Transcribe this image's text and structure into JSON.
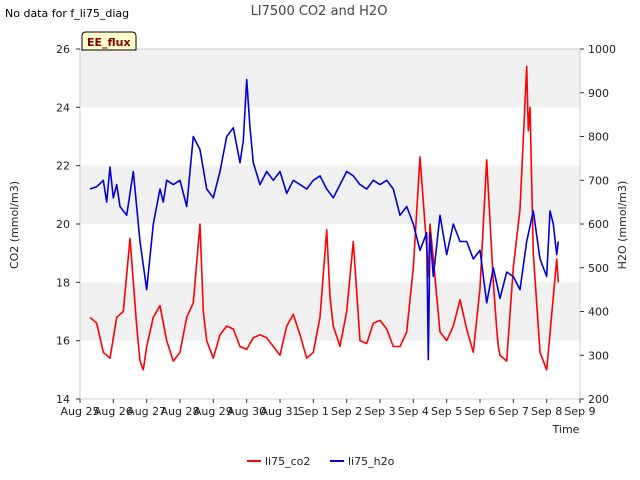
{
  "note": "No data for f_li75_diag",
  "badge": "EE_flux",
  "colors": {
    "co2": "#ff0000",
    "h2o": "#0000dd",
    "band": "#f0f0f0",
    "badge_bg": "#ffffcc"
  },
  "chart_data": {
    "type": "line",
    "title": "LI7500 CO2 and H2O",
    "xlabel": "Time",
    "ylabel": "CO2 (mmol/m3)",
    "y2label": "H2O (mmol/m3)",
    "x_ticks": [
      "Aug 25",
      "Aug 26",
      "Aug 27",
      "Aug 28",
      "Aug 29",
      "Aug 30",
      "Aug 31",
      "Sep 1",
      "Sep 2",
      "Sep 3",
      "Sep 4",
      "Sep 5",
      "Sep 6",
      "Sep 7",
      "Sep 8",
      "Sep 9"
    ],
    "xlim": [
      0,
      15
    ],
    "ylim": [
      14,
      26
    ],
    "y_ticks": [
      "14",
      "16",
      "18",
      "20",
      "22",
      "24",
      "26"
    ],
    "y2lim": [
      200,
      1000
    ],
    "y2_ticks": [
      "200",
      "300",
      "400",
      "500",
      "600",
      "700",
      "800",
      "900",
      "1000"
    ],
    "legend": [
      "li75_co2",
      "li75_h2o"
    ],
    "series": [
      {
        "name": "li75_co2",
        "axis": "left",
        "x": [
          0.3,
          0.5,
          0.7,
          0.9,
          1.1,
          1.3,
          1.5,
          1.7,
          1.8,
          1.9,
          2.0,
          2.2,
          2.4,
          2.6,
          2.8,
          3.0,
          3.2,
          3.4,
          3.6,
          3.7,
          3.8,
          4.0,
          4.2,
          4.4,
          4.6,
          4.8,
          5.0,
          5.2,
          5.4,
          5.6,
          5.8,
          6.0,
          6.2,
          6.4,
          6.6,
          6.8,
          7.0,
          7.2,
          7.4,
          7.5,
          7.6,
          7.8,
          8.0,
          8.2,
          8.4,
          8.6,
          8.8,
          9.0,
          9.2,
          9.4,
          9.6,
          9.8,
          10.0,
          10.2,
          10.4,
          10.45,
          10.5,
          10.6,
          10.8,
          11.0,
          11.2,
          11.4,
          11.6,
          11.8,
          12.0,
          12.2,
          12.4,
          12.5,
          12.55,
          12.6,
          12.8,
          13.0,
          13.2,
          13.4,
          13.45,
          13.5,
          13.6,
          13.8,
          14.0,
          14.2,
          14.3,
          14.35
        ],
        "values": [
          16.8,
          16.6,
          15.6,
          15.4,
          16.8,
          17.0,
          19.5,
          16.5,
          15.3,
          15.0,
          15.8,
          16.8,
          17.2,
          16.0,
          15.3,
          15.6,
          16.8,
          17.3,
          20.0,
          17.0,
          16.0,
          15.4,
          16.2,
          16.5,
          16.4,
          15.8,
          15.7,
          16.1,
          16.2,
          16.1,
          15.8,
          15.5,
          16.5,
          16.9,
          16.2,
          15.4,
          15.6,
          16.8,
          19.8,
          17.5,
          16.5,
          15.8,
          17.0,
          19.4,
          16.0,
          15.9,
          16.6,
          16.7,
          16.4,
          15.8,
          15.8,
          16.3,
          18.5,
          22.3,
          19.2,
          18.2,
          20.0,
          18.8,
          16.3,
          16.0,
          16.5,
          17.4,
          16.4,
          15.6,
          17.8,
          22.2,
          18.0,
          16.4,
          15.8,
          15.5,
          15.3,
          18.5,
          20.5,
          25.4,
          23.2,
          24.0,
          19.0,
          15.6,
          15.0,
          17.5,
          18.8,
          18.0
        ]
      },
      {
        "name": "li75_h2o",
        "axis": "right",
        "x": [
          0.3,
          0.5,
          0.7,
          0.8,
          0.9,
          1.0,
          1.1,
          1.2,
          1.4,
          1.6,
          1.8,
          2.0,
          2.2,
          2.4,
          2.5,
          2.6,
          2.8,
          3.0,
          3.2,
          3.4,
          3.6,
          3.8,
          4.0,
          4.2,
          4.4,
          4.6,
          4.8,
          4.9,
          5.0,
          5.1,
          5.2,
          5.4,
          5.6,
          5.8,
          6.0,
          6.2,
          6.4,
          6.6,
          6.8,
          7.0,
          7.2,
          7.4,
          7.6,
          7.8,
          8.0,
          8.2,
          8.4,
          8.6,
          8.8,
          9.0,
          9.2,
          9.4,
          9.6,
          9.8,
          10.0,
          10.2,
          10.4,
          10.45,
          10.5,
          10.6,
          10.8,
          11.0,
          11.2,
          11.4,
          11.6,
          11.8,
          12.0,
          12.2,
          12.4,
          12.6,
          12.8,
          13.0,
          13.2,
          13.4,
          13.6,
          13.8,
          14.0,
          14.1,
          14.2,
          14.3,
          14.35
        ],
        "values": [
          680,
          685,
          700,
          650,
          730,
          660,
          690,
          640,
          620,
          720,
          560,
          450,
          600,
          680,
          650,
          700,
          690,
          700,
          640,
          800,
          770,
          680,
          660,
          720,
          800,
          820,
          740,
          790,
          930,
          820,
          740,
          690,
          720,
          700,
          720,
          670,
          700,
          690,
          680,
          700,
          710,
          680,
          660,
          690,
          720,
          710,
          690,
          680,
          700,
          690,
          700,
          680,
          620,
          640,
          600,
          540,
          580,
          290,
          580,
          480,
          620,
          530,
          600,
          560,
          560,
          520,
          540,
          420,
          500,
          430,
          490,
          480,
          450,
          560,
          630,
          520,
          480,
          630,
          600,
          530,
          560
        ]
      }
    ]
  }
}
